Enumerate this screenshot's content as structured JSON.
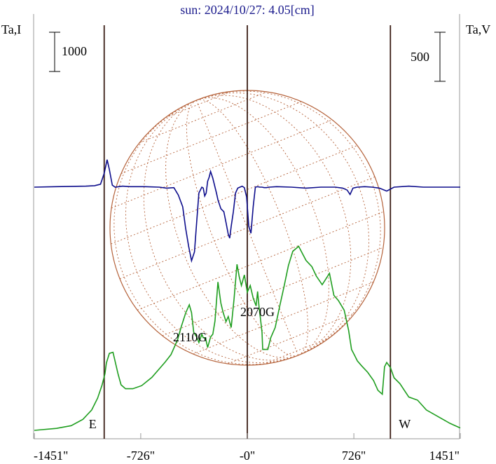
{
  "chart_data": {
    "type": "line",
    "title": "sun: 2024/10/27: 4.05[cm]",
    "ylabel_left": "Ta,I",
    "ylabel_right": "Ta,V",
    "scale_left": "1000",
    "scale_right": "500",
    "xlim": [
      -1451,
      1451
    ],
    "x_ticks": [
      {
        "value": -1451,
        "label": "-1451\""
      },
      {
        "value": -726,
        "label": "-726\""
      },
      {
        "value": 0,
        "label": "-0\""
      },
      {
        "value": 726,
        "label": "726\""
      },
      {
        "value": 1451,
        "label": "1451\""
      }
    ],
    "limb_markers": [
      {
        "label": "E",
        "x": -975
      },
      {
        "label": "W",
        "x": 975
      }
    ],
    "annotations": [
      {
        "text": "2110G",
        "x": -360
      },
      {
        "text": "2070G",
        "x": 110
      }
    ],
    "colors": {
      "intensity": "#1f9e1f",
      "polarization": "#0d0d8c",
      "disk": "#b5623a",
      "vertical_lines": "#3a1d14",
      "title": "#1a1a8c"
    },
    "series": [
      {
        "name": "I",
        "x": [
          -1451,
          -1300,
          -1200,
          -1120,
          -1060,
          -1020,
          -990,
          -970,
          -960,
          -940,
          -915,
          -880,
          -860,
          -830,
          -780,
          -720,
          -650,
          -560,
          -520,
          -475,
          -450,
          -420,
          -395,
          -380,
          -365,
          -345,
          -330,
          -310,
          -300,
          -285,
          -270,
          -250,
          -235,
          -220,
          -200,
          -180,
          -165,
          -145,
          -130,
          -110,
          -90,
          -70,
          -55,
          -40,
          -20,
          0,
          20,
          40,
          60,
          70,
          80,
          90,
          100,
          105,
          115,
          125,
          140,
          160,
          190,
          220,
          250,
          280,
          310,
          350,
          400,
          440,
          470,
          510,
          560,
          590,
          620,
          660,
          690,
          710,
          730,
          750,
          780,
          820,
          860,
          890,
          920,
          935,
          950,
          975,
          1000,
          1040,
          1100,
          1160,
          1220,
          1300,
          1380,
          1451
        ],
        "y": [
          0,
          50,
          120,
          280,
          520,
          820,
          1150,
          1440,
          1720,
          1960,
          1990,
          1430,
          1160,
          1060,
          1060,
          1140,
          1350,
          1740,
          1930,
          2310,
          2640,
          2990,
          3200,
          3000,
          2500,
          2380,
          2240,
          2450,
          2360,
          2360,
          2110,
          2380,
          2450,
          2790,
          3780,
          3240,
          3010,
          2770,
          2900,
          2620,
          3350,
          4230,
          3910,
          3690,
          3960,
          3520,
          3690,
          3370,
          3170,
          3540,
          3140,
          2830,
          2500,
          2060,
          2060,
          2060,
          2060,
          2360,
          2620,
          3150,
          3660,
          4200,
          4560,
          4690,
          4330,
          4170,
          3930,
          3710,
          4000,
          3440,
          3310,
          3060,
          2550,
          2060,
          1920,
          1770,
          1640,
          1480,
          1270,
          1020,
          920,
          1620,
          1730,
          1600,
          1340,
          1190,
          850,
          770,
          520,
          350,
          180,
          60
        ]
      },
      {
        "name": "V",
        "x": [
          -1451,
          -1300,
          -1200,
          -1100,
          -1040,
          -1000,
          -975,
          -955,
          -940,
          -920,
          -900,
          -850,
          -800,
          -700,
          -600,
          -550,
          -500,
          -470,
          -440,
          -420,
          -400,
          -380,
          -360,
          -345,
          -330,
          -310,
          -300,
          -290,
          -280,
          -270,
          -260,
          -250,
          -235,
          -220,
          -210,
          -200,
          -180,
          -160,
          -145,
          -130,
          -120,
          -110,
          -95,
          -80,
          -65,
          -50,
          -35,
          -20,
          -5,
          10,
          25,
          40,
          55,
          70,
          85,
          100,
          115,
          130,
          150,
          200,
          300,
          400,
          500,
          600,
          650,
          680,
          700,
          720,
          750,
          800,
          850,
          900,
          950,
          1000,
          1100,
          1200,
          1300,
          1451
        ],
        "y": [
          0,
          5,
          8,
          10,
          15,
          30,
          140,
          280,
          180,
          20,
          0,
          10,
          5,
          5,
          0,
          -10,
          -5,
          -80,
          -200,
          -420,
          -600,
          -750,
          -660,
          -360,
          -60,
          0,
          -10,
          -90,
          -60,
          60,
          100,
          160,
          90,
          0,
          -60,
          -130,
          -220,
          -250,
          -360,
          -480,
          -520,
          -400,
          -250,
          -60,
          -10,
          0,
          10,
          -5,
          -100,
          -400,
          -470,
          -200,
          0,
          5,
          0,
          0,
          -5,
          -5,
          0,
          5,
          0,
          -10,
          0,
          0,
          -10,
          -30,
          -75,
          -10,
          0,
          5,
          0,
          -10,
          -40,
          0,
          10,
          0,
          0,
          0
        ]
      }
    ]
  }
}
